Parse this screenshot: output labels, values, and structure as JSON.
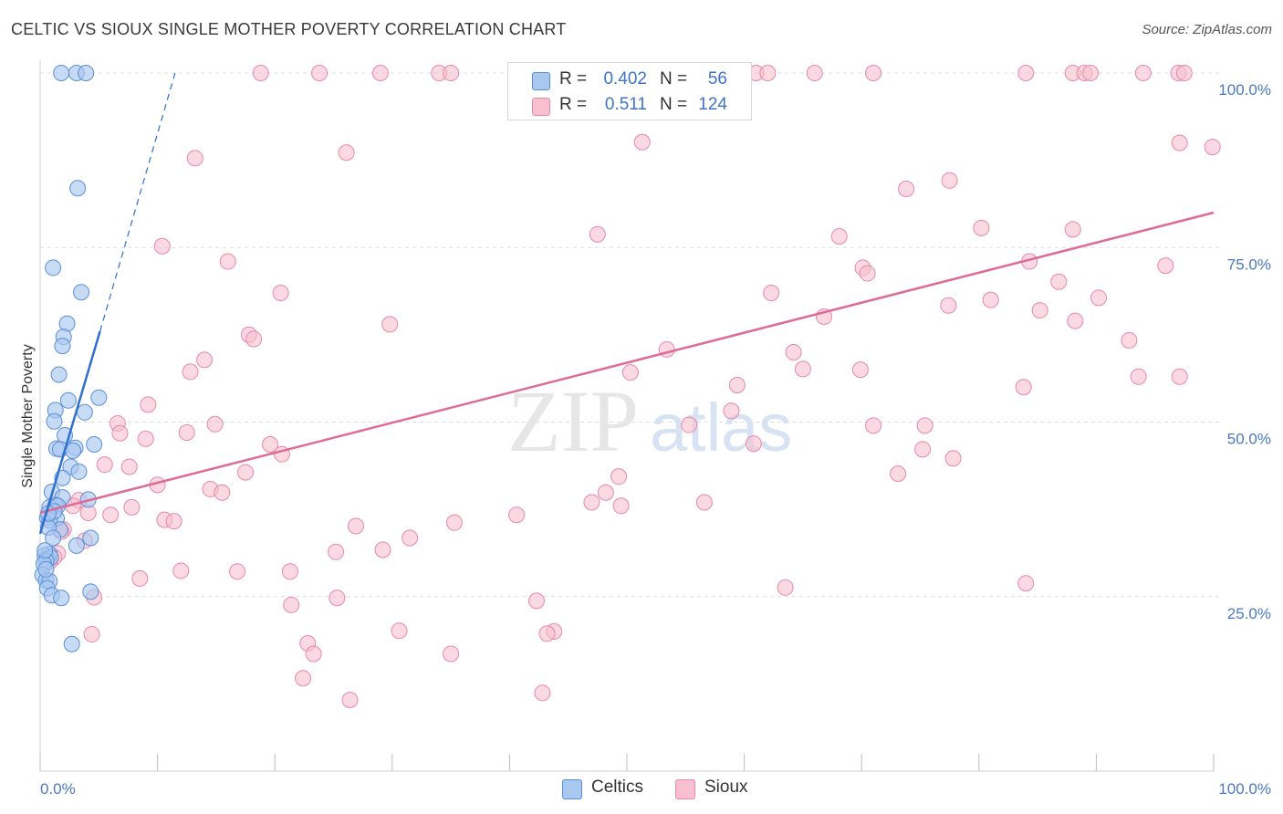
{
  "title": "CELTIC VS SIOUX SINGLE MOTHER POVERTY CORRELATION CHART",
  "source": "Source: ZipAtlas.com",
  "watermark": {
    "zip": "ZIP",
    "atlas": "atlas"
  },
  "colors": {
    "celtics_fill": "#a9c8f0",
    "celtics_stroke": "#5a8fd8",
    "celtics_line": "#2f6fd0",
    "sioux_fill": "#f7bfd0",
    "sioux_stroke": "#e888a8",
    "sioux_line": "#e06a95",
    "grid": "#dddddd",
    "axis_text": "#4a78c2"
  },
  "legend": {
    "celtics": {
      "r_label": "R =",
      "r_value": "0.402",
      "n_label": "N =",
      "n_value": "56"
    },
    "sioux": {
      "r_label": "R =",
      "r_value": "0.511",
      "n_label": "N =",
      "n_value": "124"
    }
  },
  "bottom_legend": {
    "celtics": "Celtics",
    "sioux": "Sioux"
  },
  "chart_data": {
    "type": "scatter",
    "title": "CELTIC VS SIOUX SINGLE MOTHER POVERTY CORRELATION CHART",
    "xlabel": "",
    "ylabel": "Single Mother Poverty",
    "xlim": [
      0,
      100
    ],
    "ylim": [
      0,
      100
    ],
    "x_tick_labels": [
      "0.0%",
      "100.0%"
    ],
    "y_ticks": [
      {
        "value": 25,
        "label": "25.0%"
      },
      {
        "value": 50,
        "label": "50.0%"
      },
      {
        "value": 75,
        "label": "75.0%"
      },
      {
        "value": 100,
        "label": "100.0%"
      }
    ],
    "series": [
      {
        "name": "Celtics",
        "r": 0.402,
        "n": 56,
        "trend": {
          "x": [
            0,
            5.1
          ],
          "y": [
            34.0,
            63.0
          ]
        },
        "trend_extension": {
          "x": [
            5.1,
            11.5
          ],
          "y": [
            63.0,
            100.0
          ]
        },
        "points": [
          [
            1.8,
            100
          ],
          [
            3.1,
            100
          ],
          [
            3.9,
            100
          ],
          [
            3.2,
            83.5
          ],
          [
            1.1,
            72.1
          ],
          [
            3.5,
            68.6
          ],
          [
            2.3,
            64.1
          ],
          [
            2.0,
            62.2
          ],
          [
            1.9,
            60.9
          ],
          [
            1.6,
            56.8
          ],
          [
            5.0,
            53.5
          ],
          [
            2.4,
            53.1
          ],
          [
            3.8,
            51.4
          ],
          [
            1.3,
            51.7
          ],
          [
            1.2,
            50.1
          ],
          [
            2.1,
            48.1
          ],
          [
            4.6,
            46.8
          ],
          [
            1.4,
            46.2
          ],
          [
            3.0,
            46.3
          ],
          [
            1.7,
            46.1
          ],
          [
            2.8,
            45.9
          ],
          [
            2.6,
            43.6
          ],
          [
            3.3,
            42.9
          ],
          [
            1.9,
            42.0
          ],
          [
            1.0,
            40.0
          ],
          [
            1.9,
            39.2
          ],
          [
            4.1,
            38.9
          ],
          [
            1.3,
            38.1
          ],
          [
            0.8,
            37.8
          ],
          [
            1.5,
            38.0
          ],
          [
            0.6,
            36.3
          ],
          [
            1.4,
            36.2
          ],
          [
            0.8,
            35.9
          ],
          [
            1.7,
            34.6
          ],
          [
            0.7,
            34.9
          ],
          [
            1.1,
            33.4
          ],
          [
            4.3,
            33.4
          ],
          [
            3.1,
            32.3
          ],
          [
            0.8,
            31.1
          ],
          [
            0.4,
            30.9
          ],
          [
            0.6,
            30.4
          ],
          [
            0.9,
            30.6
          ],
          [
            0.5,
            30.1
          ],
          [
            0.3,
            29.7
          ],
          [
            0.2,
            28.1
          ],
          [
            0.5,
            27.3
          ],
          [
            0.8,
            27.2
          ],
          [
            0.6,
            26.2
          ],
          [
            1.0,
            25.2
          ],
          [
            1.8,
            24.8
          ],
          [
            4.3,
            25.7
          ],
          [
            2.7,
            18.2
          ],
          [
            0.4,
            31.6
          ],
          [
            1.2,
            37.2
          ],
          [
            0.7,
            36.9
          ],
          [
            0.5,
            28.9
          ]
        ]
      },
      {
        "name": "Sioux",
        "r": 0.511,
        "n": 124,
        "trend": {
          "x": [
            0,
            100
          ],
          "y": [
            37.0,
            80.0
          ]
        },
        "points": [
          [
            18.8,
            100
          ],
          [
            23.8,
            100
          ],
          [
            29.0,
            100
          ],
          [
            34.0,
            100
          ],
          [
            35.0,
            100
          ],
          [
            54.0,
            100
          ],
          [
            55.0,
            100
          ],
          [
            61.0,
            100
          ],
          [
            62.0,
            100
          ],
          [
            66.0,
            100
          ],
          [
            71.0,
            100
          ],
          [
            84.0,
            100
          ],
          [
            88.0,
            100
          ],
          [
            89.0,
            100
          ],
          [
            89.5,
            100
          ],
          [
            94.0,
            100
          ],
          [
            97.0,
            100
          ],
          [
            97.5,
            100
          ],
          [
            51.3,
            90.1
          ],
          [
            97.1,
            90.0
          ],
          [
            99.9,
            89.4
          ],
          [
            13.2,
            87.8
          ],
          [
            26.1,
            88.6
          ],
          [
            73.8,
            83.4
          ],
          [
            77.5,
            84.6
          ],
          [
            80.2,
            77.8
          ],
          [
            88.0,
            77.6
          ],
          [
            47.5,
            76.9
          ],
          [
            68.1,
            76.6
          ],
          [
            10.4,
            75.2
          ],
          [
            16.0,
            73.0
          ],
          [
            84.3,
            73.0
          ],
          [
            95.9,
            72.4
          ],
          [
            70.1,
            72.1
          ],
          [
            70.5,
            71.3
          ],
          [
            86.8,
            70.1
          ],
          [
            20.5,
            68.5
          ],
          [
            62.3,
            68.5
          ],
          [
            81.0,
            67.5
          ],
          [
            90.2,
            67.8
          ],
          [
            77.4,
            66.7
          ],
          [
            85.2,
            66.0
          ],
          [
            66.8,
            65.1
          ],
          [
            88.2,
            64.5
          ],
          [
            29.8,
            64.0
          ],
          [
            17.8,
            62.5
          ],
          [
            18.2,
            61.9
          ],
          [
            92.8,
            61.7
          ],
          [
            53.4,
            60.4
          ],
          [
            64.2,
            60.0
          ],
          [
            14.0,
            58.9
          ],
          [
            65.0,
            57.6
          ],
          [
            69.9,
            57.5
          ],
          [
            12.8,
            57.2
          ],
          [
            50.3,
            57.1
          ],
          [
            93.6,
            56.5
          ],
          [
            97.1,
            56.5
          ],
          [
            59.4,
            55.3
          ],
          [
            83.8,
            55.0
          ],
          [
            9.2,
            52.5
          ],
          [
            58.9,
            51.6
          ],
          [
            6.6,
            49.8
          ],
          [
            14.9,
            49.7
          ],
          [
            55.3,
            49.6
          ],
          [
            71.0,
            49.5
          ],
          [
            75.4,
            49.5
          ],
          [
            6.8,
            48.4
          ],
          [
            12.5,
            48.5
          ],
          [
            9.0,
            47.6
          ],
          [
            60.8,
            46.9
          ],
          [
            19.6,
            46.8
          ],
          [
            75.2,
            46.1
          ],
          [
            20.6,
            45.4
          ],
          [
            77.8,
            44.8
          ],
          [
            5.5,
            43.9
          ],
          [
            7.6,
            43.6
          ],
          [
            17.5,
            42.8
          ],
          [
            73.1,
            42.6
          ],
          [
            49.3,
            42.2
          ],
          [
            10.0,
            41.0
          ],
          [
            14.5,
            40.4
          ],
          [
            15.5,
            39.9
          ],
          [
            48.2,
            39.9
          ],
          [
            3.3,
            38.8
          ],
          [
            47.0,
            38.5
          ],
          [
            56.6,
            38.5
          ],
          [
            49.5,
            38.0
          ],
          [
            2.8,
            38.0
          ],
          [
            7.8,
            37.8
          ],
          [
            4.1,
            37.0
          ],
          [
            6.0,
            36.7
          ],
          [
            40.6,
            36.7
          ],
          [
            10.6,
            36.0
          ],
          [
            11.4,
            35.8
          ],
          [
            35.3,
            35.6
          ],
          [
            26.9,
            35.1
          ],
          [
            2.0,
            34.6
          ],
          [
            1.8,
            34.3
          ],
          [
            31.5,
            33.4
          ],
          [
            3.8,
            33.0
          ],
          [
            29.2,
            31.7
          ],
          [
            25.2,
            31.4
          ],
          [
            1.5,
            31.2
          ],
          [
            1.2,
            30.6
          ],
          [
            0.8,
            30.0
          ],
          [
            12.0,
            28.7
          ],
          [
            16.8,
            28.6
          ],
          [
            21.3,
            28.6
          ],
          [
            8.5,
            27.6
          ],
          [
            84.0,
            26.9
          ],
          [
            63.5,
            26.3
          ],
          [
            4.6,
            24.9
          ],
          [
            25.3,
            24.8
          ],
          [
            42.3,
            24.4
          ],
          [
            21.4,
            23.8
          ],
          [
            30.6,
            20.1
          ],
          [
            43.8,
            20.0
          ],
          [
            43.2,
            19.7
          ],
          [
            4.4,
            19.6
          ],
          [
            22.8,
            18.3
          ],
          [
            23.3,
            16.8
          ],
          [
            35.0,
            16.8
          ],
          [
            22.4,
            13.3
          ],
          [
            26.4,
            10.2
          ],
          [
            42.8,
            11.2
          ]
        ]
      }
    ]
  }
}
